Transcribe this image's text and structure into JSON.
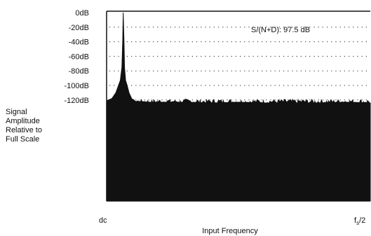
{
  "chart_data": {
    "type": "line",
    "title": "",
    "xlabel": "Input Frequency",
    "ylabel_lines": [
      "Signal",
      "Amplitude",
      "Relative to",
      "Full Scale"
    ],
    "x_tick_labels": {
      "left": "dc",
      "right_main": "f",
      "right_sub": "s",
      "right_tail": "/2"
    },
    "y_ticks": [
      {
        "value": 0,
        "label": "0dB"
      },
      {
        "value": -20,
        "label": "-20dB"
      },
      {
        "value": -40,
        "label": "-40dB"
      },
      {
        "value": -60,
        "label": "-60dB"
      },
      {
        "value": -80,
        "label": "-80dB"
      },
      {
        "value": -100,
        "label": "-100dB"
      },
      {
        "value": -120,
        "label": "-120dB"
      }
    ],
    "xlim": [
      0,
      1
    ],
    "ylim": [
      -130,
      2
    ],
    "grid": true,
    "annotation": "S/(N+D): 97.5 dB",
    "series": [
      {
        "x": [
          0.0,
          0.02,
          0.035,
          0.045,
          0.052,
          0.058,
          0.061,
          0.063,
          0.066,
          0.068,
          0.072,
          0.078,
          0.085,
          0.095,
          0.11,
          0.13,
          0.16,
          0.2,
          0.3,
          0.4,
          0.5,
          0.6,
          0.7,
          0.8,
          0.9,
          1.0
        ],
        "y": [
          -121,
          -118,
          -110,
          -100,
          -93,
          -75,
          -40,
          0,
          -40,
          -75,
          -93,
          -100,
          -110,
          -118,
          -122,
          -122,
          -123,
          -123,
          -123,
          -124,
          -123,
          -124,
          -124,
          -124,
          -123,
          -124
        ]
      }
    ]
  }
}
